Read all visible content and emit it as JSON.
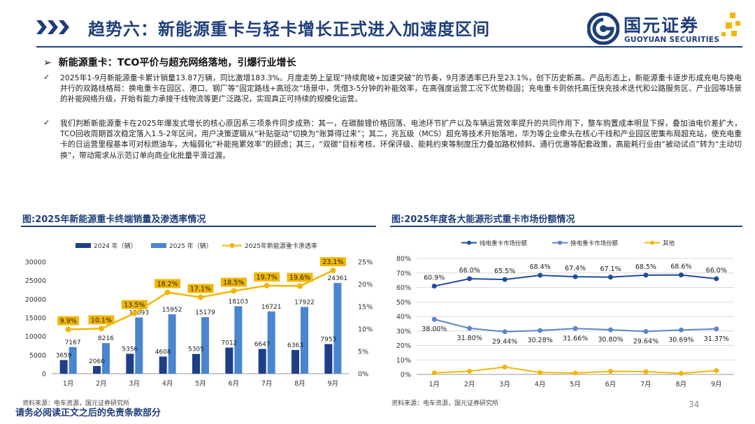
{
  "header": {
    "title": "趋势六：新能源重卡与轻卡增长正式进入加速度区间",
    "brand_cn": "国元证券",
    "brand_en": "GUOYUAN SECURITIES",
    "colors": {
      "navy": "#1f3e7a",
      "gold": "#f2b705"
    }
  },
  "section": {
    "marker": "➢",
    "heading": "新能源重卡：TCO平价与超充网络落地，引爆行业增长",
    "bullets": [
      {
        "mark": "✓",
        "text": "2025年1-9月新能源重卡累计销量13.87万辆，同比激增183.3%。月度走势上呈现“持续爬坡+加速突破”的节奏，9月渗透率已升至23.1%，创下历史新高。产品形态上，新能源重卡逐步形成充电与换电并行的双路线格局：换电重卡在园区、港口、钢厂等“固定路线+高班次”场景中，凭借3-5分钟的补能效率，在高强度运营工况下优势稳固；充电重卡则依托高压快充技术迭代和公路服务区、产业园等场景的补能网络升级，开始有能力承接干线物流等更广泛路况，实现真正可持续的规模化运营。"
      },
      {
        "mark": "✓",
        "text": "我们判断新能源重卡在2025年爆发式增长的核心原因系三项条件同步成熟：其一，在碳酸锂价格回落、电池环节扩产以及车辆运营效率提升的共同作用下，整车购置成本明显下探，叠加油电价差扩大，TCO回收周期首次稳定落入1.5-2年区间，用户决策逻辑从“补贴驱动”切换为“账算得过来”；其二，兆瓦级（MCS）超充等技术开始落地，华为等企业牵头在核心干线和产业园区密集布局超充站，使充电重卡的日运营里程基本可对标燃油车，大幅弱化“补能拖累效率”的顾虑；其三，“双碳”目标考核、环保评级、能耗约束等制度压力叠加路权倾斜、通行优惠等配套政策，高能耗行业由“被动试点”转为“主动切换”，带动需求从示范订单向商业化批量平滑过渡。"
      }
    ]
  },
  "chart_left": {
    "heading": "图:2025年新能源重卡终端销量及渗透率情况",
    "source": "资料来源：电车资源，国元证券研究所"
  },
  "chart_right": {
    "heading": "图:2025年度各大能源形式重卡市场份额情况",
    "source": "资料来源：电车资源，国元证券研究所"
  },
  "chart_data": [
    {
      "type": "bar",
      "categories": [
        "1月",
        "2月",
        "3月",
        "4月",
        "5月",
        "6月",
        "7月",
        "8月",
        "9月"
      ],
      "series": [
        {
          "name": "2024 年（辆）",
          "kind": "bar",
          "axis": "left",
          "color": "#1f3e8a",
          "values": [
            3659,
            2060,
            5356,
            4608,
            5305,
            7012,
            6647,
            6363,
            7953
          ]
        },
        {
          "name": "2025 年（辆）",
          "kind": "bar",
          "axis": "left",
          "color": "#4a86d0",
          "values": [
            7167,
            8216,
            15093,
            15952,
            15179,
            18103,
            16721,
            17922,
            24361
          ]
        },
        {
          "name": "2025年新能源重卡渗透率",
          "kind": "line",
          "axis": "right",
          "color": "#f2b705",
          "values": [
            9.9,
            10.1,
            13.5,
            18.2,
            17.1,
            18.5,
            19.7,
            19.6,
            23.1
          ],
          "labels": [
            "9.9%",
            "10.1%",
            "13.5%",
            "18.2%",
            "17.1%",
            "18.5%",
            "19.7%",
            "19.6%",
            "23.1%"
          ]
        }
      ],
      "ylim": [
        0,
        30000
      ],
      "yticks": [
        "0",
        "5000",
        "10000",
        "15000",
        "20000",
        "25000",
        "30000"
      ],
      "y2lim": [
        0,
        25
      ],
      "y2ticks": [
        "0%",
        "5%",
        "10%",
        "15%",
        "20%",
        "25%"
      ],
      "legend": "top",
      "grid": false
    },
    {
      "type": "line",
      "categories": [
        "1月",
        "2月",
        "3月",
        "4月",
        "5月",
        "6月",
        "7月",
        "8月",
        "9月"
      ],
      "series": [
        {
          "name": "纯电重卡市场份额",
          "color": "#1f4e9a",
          "values": [
            60.9,
            66.0,
            65.5,
            68.4,
            67.4,
            67.1,
            68.5,
            68.6,
            66.0
          ],
          "labels": [
            "60.9%",
            "66.0%",
            "65.5%",
            "68.4%",
            "67.4%",
            "67.1%",
            "68.5%",
            "68.6%",
            "66.0%"
          ]
        },
        {
          "name": "换电重卡市场份额",
          "color": "#5b86c8",
          "values": [
            38.0,
            31.8,
            29.44,
            30.28,
            31.66,
            30.8,
            29.64,
            30.69,
            31.37
          ],
          "labels": [
            "38.00%",
            "31.80%",
            "29.44%",
            "30.28%",
            "31.66%",
            "30.80%",
            "29.64%",
            "30.69%",
            "31.37%"
          ]
        },
        {
          "name": "其他",
          "color": "#f2b705",
          "values": [
            1.1,
            2.2,
            5.06,
            1.32,
            0.94,
            2.1,
            1.86,
            0.71,
            2.63
          ],
          "labels": []
        }
      ],
      "ylim": [
        0,
        80
      ],
      "yticks": [
        "0%",
        "10%",
        "20%",
        "30%",
        "40%",
        "50%",
        "60%",
        "70%",
        "80%"
      ],
      "legend": "top",
      "grid": true
    }
  ],
  "footer": {
    "disclaimer": "请务必阅读正文之后的免责条款部分",
    "page": "34"
  }
}
